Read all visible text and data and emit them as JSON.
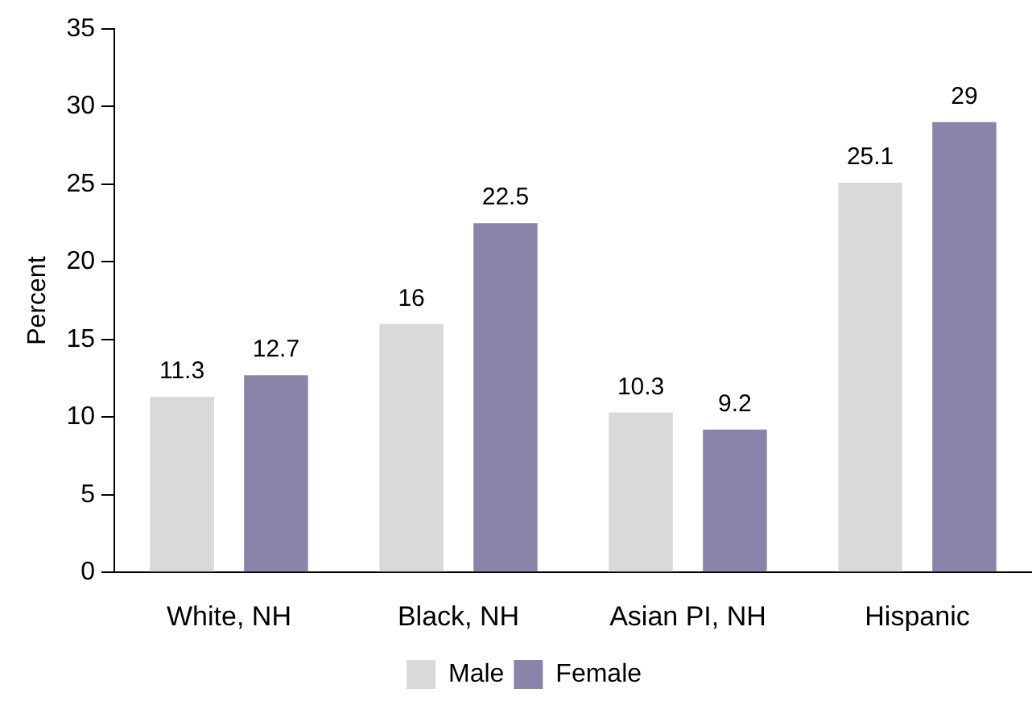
{
  "chart_data": {
    "type": "bar",
    "ylabel": "Percent",
    "categories": [
      "White, NH",
      "Black, NH",
      "Asian PI, NH",
      "Hispanic"
    ],
    "series": [
      {
        "name": "Male",
        "color": "#d9d9d9",
        "values": [
          11.3,
          16,
          10.3,
          25.1
        ]
      },
      {
        "name": "Female",
        "color": "#8a84a8",
        "values": [
          12.7,
          22.5,
          9.2,
          29
        ]
      }
    ],
    "ylim": [
      0,
      35
    ],
    "yticks": [
      0,
      5,
      10,
      15,
      20,
      25,
      30,
      35
    ],
    "grid": false,
    "legend": "bottom",
    "data_labels": true
  }
}
